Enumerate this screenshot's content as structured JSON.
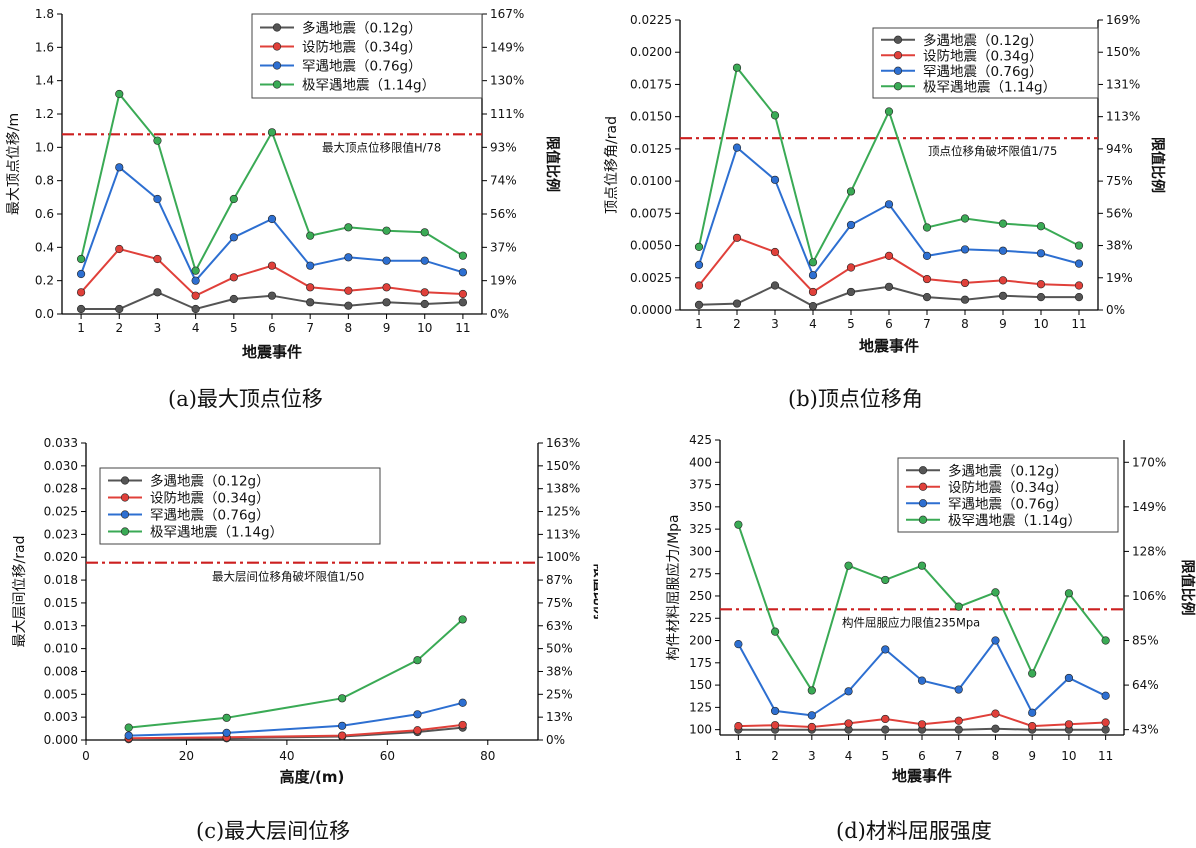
{
  "figure": {
    "captions": [
      "(a)最大顶点位移",
      "(b)顶点位移角",
      "(c)最大层间位移",
      "(d)材料屈服强度"
    ]
  },
  "colors": {
    "series": [
      "#555555",
      "#e0403a",
      "#2d6fd1",
      "#3aaa55"
    ],
    "limit_line": "#cc1f1f",
    "axis": "#000000"
  },
  "chart_data": [
    {
      "type": "line",
      "title": "",
      "xlabel": "地震事件",
      "ylabel": "最大顶点位移/m",
      "y2label": "限值比例",
      "x": [
        1,
        2,
        3,
        4,
        5,
        6,
        7,
        8,
        9,
        10,
        11
      ],
      "xlim": [
        0.5,
        11.5
      ],
      "ylim": [
        0,
        1.8
      ],
      "yticks": [
        "0.0",
        "0.2",
        "0.4",
        "0.6",
        "0.8",
        "1.0",
        "1.2",
        "1.4",
        "1.6",
        "1.8"
      ],
      "y2ticks": [
        "0%",
        "19%",
        "37%",
        "56%",
        "74%",
        "93%",
        "111%",
        "130%",
        "149%",
        "167%"
      ],
      "limit": {
        "value": 1.078,
        "label": "最大顶点位移限值H/78"
      },
      "legend_position": "top-right",
      "series": [
        {
          "name": "多遇地震（0.12g）",
          "values": [
            0.03,
            0.03,
            0.13,
            0.03,
            0.09,
            0.11,
            0.07,
            0.05,
            0.07,
            0.06,
            0.07
          ]
        },
        {
          "name": "设防地震（0.34g）",
          "values": [
            0.13,
            0.39,
            0.33,
            0.11,
            0.22,
            0.29,
            0.16,
            0.14,
            0.16,
            0.13,
            0.12
          ]
        },
        {
          "name": "罕遇地震（0.76g）",
          "values": [
            0.24,
            0.88,
            0.69,
            0.2,
            0.46,
            0.57,
            0.29,
            0.34,
            0.32,
            0.32,
            0.25
          ]
        },
        {
          "name": "极罕遇地震（1.14g）",
          "values": [
            0.33,
            1.32,
            1.04,
            0.26,
            0.69,
            1.09,
            0.47,
            0.52,
            0.5,
            0.49,
            0.35
          ]
        }
      ]
    },
    {
      "type": "line",
      "title": "",
      "xlabel": "地震事件",
      "ylabel": "顶点位移角/rad",
      "y2label": "限值比例",
      "x": [
        1,
        2,
        3,
        4,
        5,
        6,
        7,
        8,
        9,
        10,
        11
      ],
      "xlim": [
        0.5,
        11.5
      ],
      "ylim": [
        0,
        0.0225
      ],
      "yticks": [
        "0.0000",
        "0.0025",
        "0.0050",
        "0.0075",
        "0.0100",
        "0.0125",
        "0.0150",
        "0.0175",
        "0.0200",
        "0.0225"
      ],
      "y2ticks": [
        "0%",
        "19%",
        "38%",
        "56%",
        "75%",
        "94%",
        "113%",
        "131%",
        "150%",
        "169%"
      ],
      "limit": {
        "value": 0.01333,
        "label": "顶点位移角破坏限值1/75"
      },
      "legend_position": "top-right",
      "series": [
        {
          "name": "多遇地震（0.12g）",
          "values": [
            0.0004,
            0.0005,
            0.0019,
            0.0003,
            0.0014,
            0.0018,
            0.001,
            0.0008,
            0.0011,
            0.001,
            0.001
          ]
        },
        {
          "name": "设防地震（0.34g）",
          "values": [
            0.0019,
            0.0056,
            0.0045,
            0.0014,
            0.0033,
            0.0042,
            0.0024,
            0.0021,
            0.0023,
            0.002,
            0.0019
          ]
        },
        {
          "name": "罕遇地震（0.76g）",
          "values": [
            0.0035,
            0.0126,
            0.0101,
            0.0027,
            0.0066,
            0.0082,
            0.0042,
            0.0047,
            0.0046,
            0.0044,
            0.0036
          ]
        },
        {
          "name": "极罕遇地震（1.14g）",
          "values": [
            0.0049,
            0.0188,
            0.0151,
            0.0037,
            0.0092,
            0.0154,
            0.0064,
            0.0071,
            0.0067,
            0.0065,
            0.005
          ]
        }
      ]
    },
    {
      "type": "line",
      "title": "",
      "xlabel": "高度/(m)",
      "ylabel": "最大层间位移/rad",
      "y2label": "限值比例",
      "xlim": [
        0,
        90
      ],
      "xticks": [
        0,
        20,
        40,
        60,
        80
      ],
      "ylim": [
        0,
        0.0335
      ],
      "yticks": [
        "0.000",
        "0.003",
        "0.005",
        "0.008",
        "0.010",
        "0.013",
        "0.015",
        "0.018",
        "0.020",
        "0.023",
        "0.025",
        "0.028",
        "0.030",
        "0.033"
      ],
      "y2ticks": [
        "0%",
        "13%",
        "25%",
        "38%",
        "50%",
        "63%",
        "75%",
        "87%",
        "100%",
        "113%",
        "125%",
        "138%",
        "150%",
        "163%"
      ],
      "limit": {
        "value": 0.02,
        "label": "最大层间位移角破坏限值1/50"
      },
      "legend_position": "top-left",
      "series": [
        {
          "name": "多遇地震（0.12g）",
          "x": [
            8.5,
            28,
            51,
            66,
            75
          ],
          "values": [
            0.0001,
            0.0002,
            0.0004,
            0.0009,
            0.0014
          ]
        },
        {
          "name": "设防地震（0.34g）",
          "x": [
            8.5,
            28,
            51,
            66,
            75
          ],
          "values": [
            0.0002,
            0.0003,
            0.0005,
            0.0011,
            0.0017
          ]
        },
        {
          "name": "罕遇地震（0.76g）",
          "x": [
            8.5,
            28,
            51,
            66,
            75
          ],
          "values": [
            0.0005,
            0.0008,
            0.0016,
            0.0029,
            0.0042
          ]
        },
        {
          "name": "极罕遇地震（1.14g）",
          "x": [
            8.5,
            28,
            51,
            66,
            75
          ],
          "values": [
            0.0014,
            0.0025,
            0.0047,
            0.009,
            0.0136
          ]
        }
      ]
    },
    {
      "type": "line",
      "title": "",
      "xlabel": "地震事件",
      "ylabel": "构件材料屈服应力/Mpa",
      "y2label": "限值比例",
      "x": [
        1,
        2,
        3,
        4,
        5,
        6,
        7,
        8,
        9,
        10,
        11
      ],
      "xlim": [
        0.5,
        11.5
      ],
      "ylim": [
        94,
        425
      ],
      "yticks": [
        "100",
        "125",
        "150",
        "175",
        "200",
        "225",
        "250",
        "275",
        "300",
        "325",
        "350",
        "375",
        "400",
        "425"
      ],
      "yticks_values": [
        100,
        125,
        150,
        175,
        200,
        225,
        250,
        275,
        300,
        325,
        350,
        375,
        400,
        425
      ],
      "y2ticks": [
        "43%",
        "64%",
        "85%",
        "106%",
        "128%",
        "149%",
        "170%"
      ],
      "y2ticks_values": [
        100,
        150,
        200,
        250,
        300,
        350,
        400
      ],
      "limit": {
        "value": 235,
        "label": "构件屈服应力限值235Mpa"
      },
      "legend_position": "top-right",
      "series": [
        {
          "name": "多遇地震（0.12g）",
          "values": [
            100,
            100,
            100,
            100,
            100,
            100,
            100,
            101,
            100,
            100,
            100
          ]
        },
        {
          "name": "设防地震（0.34g）",
          "values": [
            104,
            105,
            103,
            107,
            112,
            106,
            110,
            118,
            104,
            106,
            108
          ]
        },
        {
          "name": "罕遇地震（0.76g）",
          "values": [
            196,
            121,
            116,
            143,
            190,
            155,
            145,
            200,
            119,
            158,
            138
          ]
        },
        {
          "name": "极罕遇地震（1.14g）",
          "values": [
            330,
            210,
            144,
            284,
            268,
            284,
            238,
            254,
            163,
            253,
            200
          ]
        }
      ]
    }
  ]
}
